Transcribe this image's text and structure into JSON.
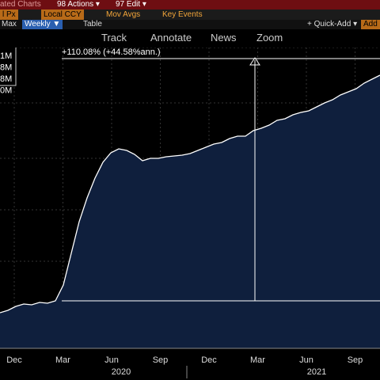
{
  "toolbar": {
    "row1": [
      "ated Charts",
      "98 Actions ▾",
      "97 Edit ▾"
    ],
    "row2": [
      "l Px",
      "Local CCY",
      "Mov Avgs",
      "Key Events"
    ],
    "row3": [
      "Max",
      "Weekly ▼",
      "Table",
      "+ Quick-Add ▾",
      "Add"
    ],
    "row4": [
      "Track",
      "Annotate",
      "News",
      "Zoom"
    ]
  },
  "legend_values": [
    "1M",
    "8M",
    "8M",
    "0M"
  ],
  "chart_data": {
    "type": "area",
    "annotation": "+110.08% (+44.58%ann.)",
    "color": "#0f1f3d",
    "line_color": "#ffffff",
    "categories": [
      null,
      null,
      null,
      null,
      null,
      null,
      null,
      null,
      null,
      null,
      null,
      null,
      null,
      null,
      null,
      null,
      null,
      null,
      null,
      null,
      null,
      null,
      null,
      null,
      null,
      null,
      null,
      null,
      null,
      null,
      null,
      null,
      null,
      null,
      null,
      null,
      null,
      null,
      null,
      null,
      null,
      null,
      null,
      null,
      null,
      null,
      null,
      null,
      null
    ],
    "values": [
      45,
      48,
      53,
      56,
      55,
      58,
      57,
      60,
      80,
      120,
      160,
      190,
      215,
      235,
      247,
      252,
      250,
      245,
      237,
      240,
      240,
      242,
      243,
      244,
      246,
      250,
      254,
      258,
      260,
      265,
      268,
      268,
      275,
      278,
      282,
      288,
      290,
      295,
      298,
      300,
      305,
      310,
      314,
      320,
      324,
      328,
      335,
      340,
      345
    ],
    "ylim": [
      0,
      380
    ],
    "x_labels": [
      "Dec",
      "Mar",
      "Jun",
      "Sep",
      "Dec",
      "Mar",
      "Jun",
      "Sep"
    ],
    "years": [
      "2020",
      "2021"
    ]
  }
}
